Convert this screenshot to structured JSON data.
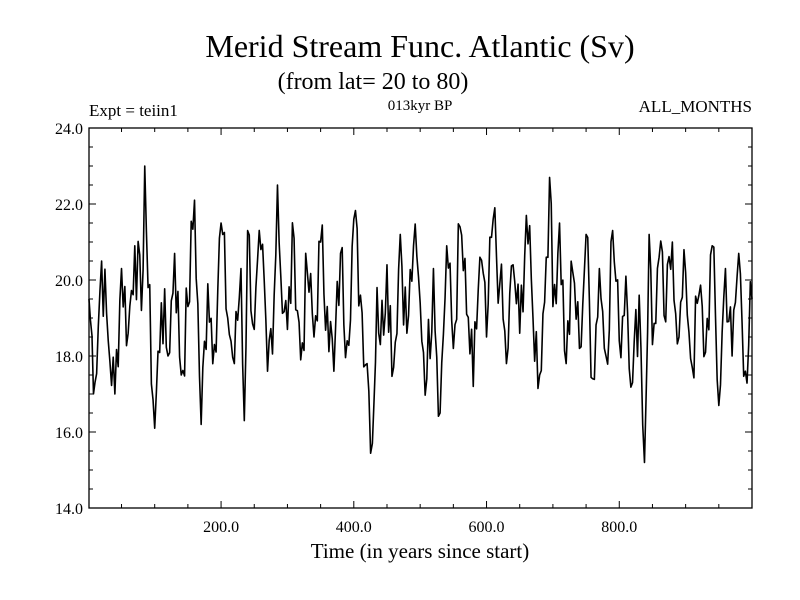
{
  "chart_data": {
    "type": "line",
    "title": "Merid Stream Func. Atlantic (Sv)",
    "subtitle": "(from lat= 20 to 80)",
    "experiment_label": "Expt = teiin1",
    "period_label": "013kyr BP",
    "months_label": "ALL_MONTHS",
    "xlabel": "Time (in years since start)",
    "ylabel": "",
    "xlim": [
      1,
      1000
    ],
    "ylim": [
      14.0,
      24.0
    ],
    "x_ticks": [
      200,
      400,
      600,
      800
    ],
    "x_tick_labels": [
      "200.0",
      "400.0",
      "600.0",
      "800.0"
    ],
    "y_ticks": [
      14,
      16,
      18,
      20,
      22,
      24
    ],
    "y_tick_labels": [
      "14.0",
      "16.0",
      "18.0",
      "20.0",
      "22.0",
      "24.0"
    ],
    "line_color": "#000000",
    "grid": false,
    "series": [
      {
        "x": [
          1,
          10,
          20,
          30,
          40,
          50,
          60,
          70,
          80,
          85,
          90,
          100,
          110,
          120,
          130,
          140,
          150,
          160,
          170,
          180,
          190,
          200,
          210,
          220,
          230,
          235,
          240,
          250,
          260,
          270,
          280,
          285,
          290,
          300,
          310,
          320,
          330,
          340,
          350,
          360,
          370,
          380,
          390,
          400,
          410,
          420,
          428,
          435,
          440,
          450,
          460,
          470,
          480,
          490,
          500,
          510,
          520,
          530,
          540,
          550,
          560,
          570,
          580,
          590,
          600,
          610,
          620,
          630,
          640,
          650,
          660,
          670,
          680,
          690,
          695,
          700,
          710,
          720,
          730,
          740,
          750,
          760,
          770,
          780,
          790,
          800,
          810,
          820,
          830,
          838,
          845,
          850,
          860,
          870,
          880,
          890,
          900,
          910,
          920,
          930,
          940,
          950,
          960,
          970,
          980,
          990,
          1000
        ],
        "y": [
          19.5,
          17.3,
          20.5,
          18.4,
          17.0,
          20.3,
          18.6,
          20.9,
          19.2,
          23.0,
          19.8,
          16.1,
          19.4,
          18.0,
          20.7,
          17.5,
          19.3,
          22.1,
          16.2,
          19.9,
          18.3,
          21.5,
          19.0,
          17.8,
          20.3,
          16.3,
          21.3,
          18.7,
          20.8,
          17.6,
          19.6,
          22.5,
          20.1,
          18.7,
          21.1,
          17.9,
          20.2,
          18.5,
          21.0,
          19.3,
          17.6,
          20.7,
          18.4,
          21.6,
          19.6,
          17.8,
          15.7,
          19.8,
          18.3,
          20.4,
          17.7,
          21.2,
          18.6,
          20.9,
          19.4,
          17.4,
          20.3,
          16.5,
          20.9,
          18.2,
          21.4,
          19.1,
          17.2,
          20.6,
          18.5,
          21.6,
          19.9,
          17.8,
          20.4,
          18.6,
          21.7,
          19.0,
          17.5,
          20.6,
          22.7,
          19.3,
          21.5,
          17.8,
          20.2,
          18.2,
          21.2,
          17.4,
          20.3,
          18.0,
          21.3,
          18.4,
          20.1,
          17.3,
          19.6,
          15.2,
          21.2,
          18.3,
          20.6,
          18.9,
          21.0,
          18.5,
          20.2,
          17.7,
          19.6,
          18.1,
          20.9,
          16.7,
          20.3,
          18.0,
          20.7,
          17.6,
          19.5
        ]
      }
    ]
  }
}
